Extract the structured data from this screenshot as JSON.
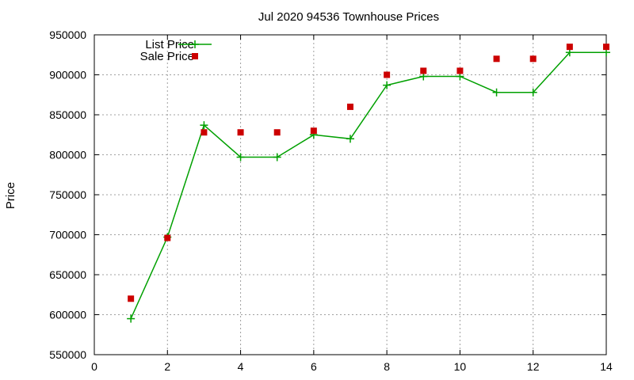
{
  "chart_data": {
    "type": "line",
    "title": "Jul 2020 94536 Townhouse Prices",
    "xlabel": "",
    "ylabel": "Price",
    "xlim": [
      0,
      14
    ],
    "ylim": [
      550000,
      950000
    ],
    "xticks": [
      0,
      2,
      4,
      6,
      8,
      10,
      12,
      14
    ],
    "yticks": [
      550000,
      600000,
      650000,
      700000,
      750000,
      800000,
      850000,
      900000,
      950000
    ],
    "grid": true,
    "legend_position": "top-left",
    "series": [
      {
        "name": "List Price",
        "style": "line+plus",
        "color": "#00a000",
        "points": [
          [
            1,
            595000
          ],
          [
            2,
            697000
          ],
          [
            3,
            837000
          ],
          [
            4,
            797000
          ],
          [
            5,
            797000
          ],
          [
            6,
            825000
          ],
          [
            7,
            820000
          ],
          [
            8,
            887000
          ],
          [
            9,
            898000
          ],
          [
            10,
            898000
          ],
          [
            11,
            878000
          ],
          [
            12,
            878000
          ],
          [
            13,
            928000
          ],
          [
            14,
            928000
          ]
        ]
      },
      {
        "name": "Sale Price",
        "style": "square",
        "color": "#cc0000",
        "points": [
          [
            1,
            620000
          ],
          [
            2,
            696000
          ],
          [
            3,
            828000
          ],
          [
            4,
            828000
          ],
          [
            5,
            828000
          ],
          [
            6,
            830000
          ],
          [
            7,
            860000
          ],
          [
            8,
            900000
          ],
          [
            9,
            905000
          ],
          [
            10,
            905000
          ],
          [
            11,
            920000
          ],
          [
            12,
            920000
          ],
          [
            13,
            935000
          ],
          [
            14,
            935000
          ]
        ]
      }
    ]
  }
}
